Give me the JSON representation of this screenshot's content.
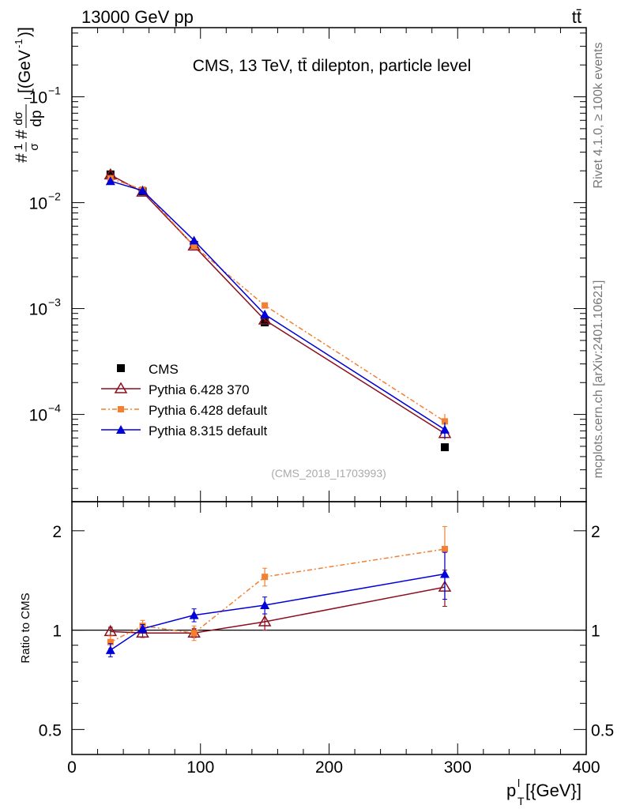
{
  "header": {
    "left_label": "13000 GeV pp",
    "right_label": "tt̄"
  },
  "side_labels": {
    "rivet": "Rivet 4.1.0, ≥ 100k events",
    "mcplots": "mcplots.cern.ch [arXiv:2401.10621]"
  },
  "chart_data": {
    "type": "line",
    "title": "CMS, 13 TeV, tt̄ dilepton, particle level",
    "analysis_id": "(CMS_2018_I1703993)",
    "xlabel": "p_T^l [{GeV}]",
    "xlabel_main": "p",
    "xlabel_sub": "T",
    "xlabel_sup": "l",
    "xlabel_unit": "[{GeV}]",
    "ylabel": "#1/σ #dσ/dp_T^l [(GeV)^-1]",
    "ylabel_prefix": "#",
    "ylabel_num1": "1",
    "ylabel_den1": "σ",
    "ylabel_hash": "#",
    "ylabel_num2": "dσ",
    "ylabel_den2": "dp",
    "ylabel_den2_sup": "l",
    "ylabel_unit": "[(GeV",
    "ylabel_unit_sup": "-1",
    "ylabel_unit_close": ")]",
    "xlim": [
      0,
      400
    ],
    "xticks": [
      0,
      100,
      200,
      300,
      400
    ],
    "ylim": [
      1.5e-05,
      0.45
    ],
    "yticks": [
      {
        "value": 0.1,
        "base": "10",
        "exp": "−1"
      },
      {
        "value": 0.01,
        "base": "10",
        "exp": "−2"
      },
      {
        "value": 0.001,
        "base": "10",
        "exp": "−3"
      },
      {
        "value": 0.0001,
        "base": "10",
        "exp": "−4"
      }
    ],
    "x": [
      30,
      55,
      95,
      150,
      290
    ],
    "series": [
      {
        "name": "CMS",
        "marker": "square",
        "color": "#000000",
        "dash": "none",
        "values": [
          0.0185,
          0.0128,
          0.004,
          0.00074,
          4.9e-05
        ],
        "errors": [
          0.0003,
          0.0002,
          8e-05,
          3e-05,
          3e-06
        ]
      },
      {
        "name": "Pythia 6.428 370",
        "marker": "triangle-open",
        "color": "#8b0e1f",
        "dash": "none",
        "values": [
          0.0183,
          0.0126,
          0.0039,
          0.00078,
          6.6e-05
        ],
        "errors": [
          0.0004,
          0.0003,
          0.0001,
          4e-05,
          8e-06
        ]
      },
      {
        "name": "Pythia 6.428 default",
        "marker": "square-small",
        "color": "#f47f30",
        "dash": "6,3,2,3",
        "values": [
          0.017,
          0.0133,
          0.0039,
          0.00107,
          8.6e-05
        ],
        "errors": [
          0.0004,
          0.0003,
          0.0001,
          6e-05,
          1.5e-05
        ]
      },
      {
        "name": "Pythia 8.315 default",
        "marker": "triangle",
        "color": "#0000d8",
        "dash": "none",
        "values": [
          0.016,
          0.013,
          0.0044,
          0.00088,
          7.2e-05
        ],
        "errors": [
          0.0004,
          0.0003,
          0.0001,
          5e-05,
          1.2e-05
        ]
      }
    ],
    "ratio": {
      "ylabel": "Ratio to CMS",
      "ylim": [
        0.42,
        2.45
      ],
      "yticks": [
        0.5,
        1,
        2
      ],
      "ytick_labels": [
        "0.5",
        "1",
        "2"
      ],
      "reference": 1,
      "series": [
        {
          "name": "Pythia 6.428 370",
          "values": [
            0.99,
            0.98,
            0.98,
            1.06,
            1.35
          ],
          "errors": [
            0.03,
            0.03,
            0.03,
            0.06,
            0.17
          ]
        },
        {
          "name": "Pythia 6.428 default",
          "values": [
            0.92,
            1.03,
            0.98,
            1.45,
            1.76
          ],
          "errors": [
            0.04,
            0.04,
            0.05,
            0.09,
            0.3
          ]
        },
        {
          "name": "Pythia 8.315 default",
          "values": [
            0.87,
            1.01,
            1.11,
            1.19,
            1.48
          ],
          "errors": [
            0.04,
            0.03,
            0.05,
            0.07,
            0.24
          ]
        }
      ]
    }
  }
}
